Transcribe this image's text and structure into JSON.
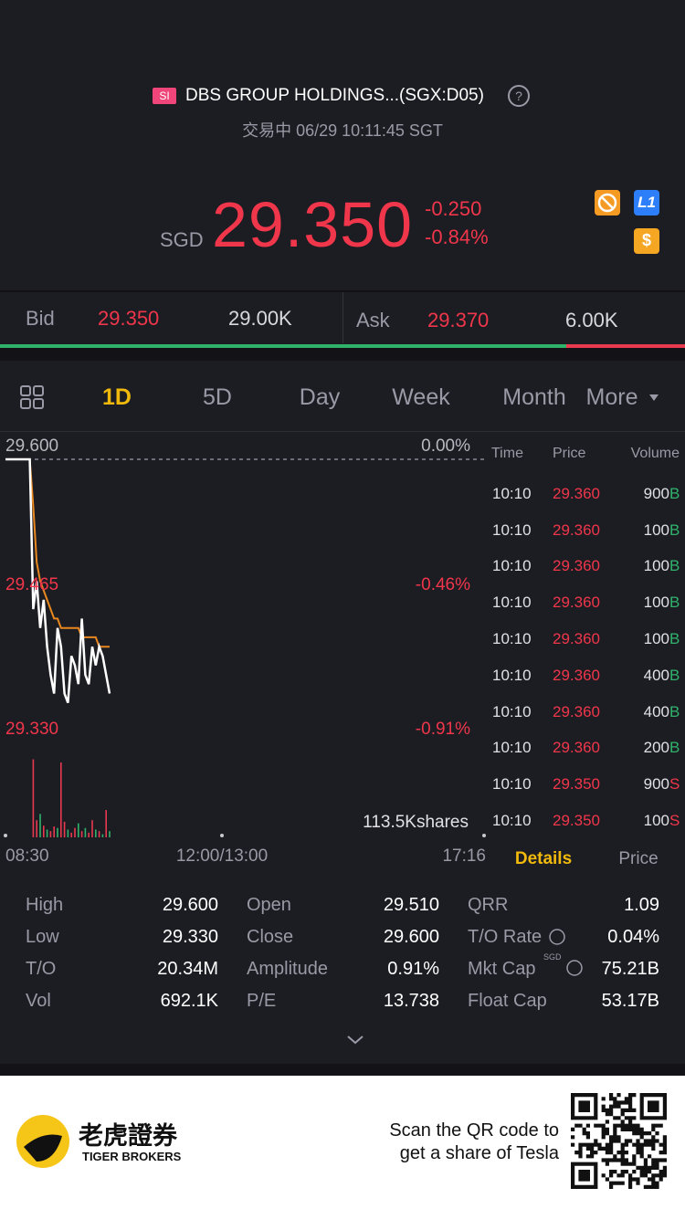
{
  "header": {
    "badge": "SI",
    "name": "DBS GROUP HOLDINGS...(SGX:D05)",
    "help": "?",
    "status": "交易中 06/29 10:11:45 SGT"
  },
  "quote": {
    "currency": "SGD",
    "price": "29.350",
    "change": "-0.250",
    "change_pct": "-0.84%",
    "icons": [
      "L1",
      "$"
    ]
  },
  "order_book": {
    "bid_label": "Bid",
    "bid_price": "29.350",
    "bid_size": "29.00K",
    "ask_label": "Ask",
    "ask_price": "29.370",
    "ask_size": "6.00K"
  },
  "tabs": [
    "1D",
    "5D",
    "Day",
    "Week",
    "Month",
    "More"
  ],
  "chart": {
    "price_labels": [
      {
        "price": "29.600",
        "pct": "0.00%"
      },
      {
        "price": "29.465",
        "pct": "-0.46%"
      },
      {
        "price": "29.330",
        "pct": "-0.91%"
      }
    ],
    "volume_label": "113.5Kshares",
    "time_labels": [
      "08:30",
      "12:00/13:00",
      "17:16"
    ],
    "ylim": [
      29.33,
      29.6
    ],
    "price_line": [
      29.6,
      29.6,
      29.6,
      29.6,
      29.6,
      29.6,
      29.6,
      29.6,
      29.44,
      29.47,
      29.42,
      29.45,
      29.4,
      29.37,
      29.35,
      29.42,
      29.4,
      29.35,
      29.34,
      29.39,
      29.38,
      29.36,
      29.43,
      29.37,
      29.36,
      29.4,
      29.38,
      29.4,
      29.39,
      29.37,
      29.35
    ],
    "avg_line": [
      29.6,
      29.6,
      29.6,
      29.6,
      29.6,
      29.6,
      29.6,
      29.6,
      29.55,
      29.49,
      29.47,
      29.46,
      29.45,
      29.44,
      29.43,
      29.43,
      29.42,
      29.42,
      29.42,
      29.42,
      29.42,
      29.42,
      29.41,
      29.41,
      29.41,
      29.41,
      29.41,
      29.4,
      29.4,
      29.4,
      29.4
    ],
    "volume_ylim": [
      0,
      113.5
    ],
    "volume": [
      0,
      0,
      0,
      0,
      0,
      0,
      0,
      0,
      100,
      22,
      30,
      15,
      10,
      8,
      14,
      12,
      96,
      20,
      10,
      6,
      12,
      18,
      8,
      12,
      6,
      22,
      10,
      8,
      4,
      35,
      8
    ],
    "volume_colors": [
      "#e8394f",
      "#e8394f",
      "#e8394f",
      "#e8394f",
      "#e8394f",
      "#e8394f",
      "#e8394f",
      "#e8394f",
      "#e8394f",
      "#e8394f",
      "#2fb36b",
      "#e8394f",
      "#2fb36b",
      "#e8394f",
      "#e8394f",
      "#2fb36b",
      "#e8394f",
      "#e8394f",
      "#2fb36b",
      "#e8394f",
      "#e8394f",
      "#2fb36b",
      "#e8394f",
      "#2fb36b",
      "#e8394f",
      "#e8394f",
      "#2fb36b",
      "#e8394f",
      "#2fb36b",
      "#e8394f",
      "#2fb36b"
    ]
  },
  "trades": {
    "headers": [
      "Time",
      "Price",
      "Volume"
    ],
    "rows": [
      [
        "10:10",
        "29.360",
        "900",
        "B"
      ],
      [
        "10:10",
        "29.360",
        "100",
        "B"
      ],
      [
        "10:10",
        "29.360",
        "100",
        "B"
      ],
      [
        "10:10",
        "29.360",
        "100",
        "B"
      ],
      [
        "10:10",
        "29.360",
        "100",
        "B"
      ],
      [
        "10:10",
        "29.360",
        "400",
        "B"
      ],
      [
        "10:10",
        "29.360",
        "400",
        "B"
      ],
      [
        "10:10",
        "29.360",
        "200",
        "B"
      ],
      [
        "10:10",
        "29.350",
        "900",
        "S"
      ],
      [
        "10:10",
        "29.350",
        "100",
        "S"
      ]
    ]
  },
  "panel_tabs": [
    "Details",
    "Price"
  ],
  "stats": {
    "rows": [
      [
        "High",
        "29.600",
        "Open",
        "29.510",
        "QRR",
        "1.09"
      ],
      [
        "Low",
        "29.330",
        "Close",
        "29.600",
        "T/O Rate",
        "0.04%"
      ],
      [
        "T/O",
        "20.34M",
        "Amplitude",
        "0.91%",
        "Mkt Cap",
        "75.21B"
      ],
      [
        "Vol",
        "692.1K",
        "P/E",
        "13.738",
        "Float Cap",
        "53.17B"
      ]
    ],
    "mkt_cap_unit": "SGD"
  },
  "footer": {
    "brand_cn": "老虎證券",
    "brand_en": "TIGER BROKERS",
    "promo": [
      "Scan the QR code to",
      "get a share of Tesla"
    ]
  }
}
